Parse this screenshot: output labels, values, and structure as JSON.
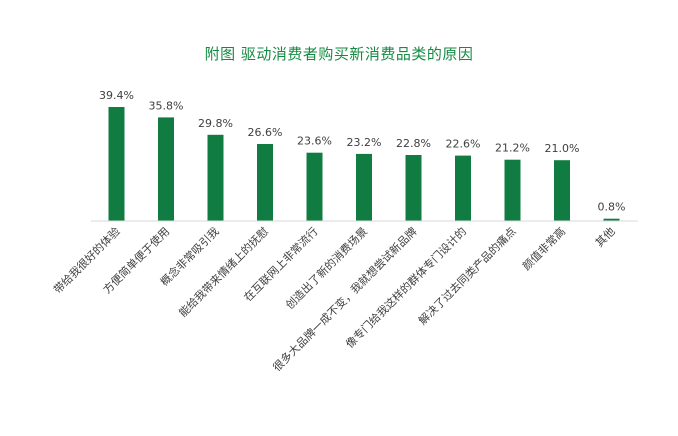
{
  "colors": {
    "bar": "#107c41",
    "title": "#168a43",
    "axis": "#d9d9d9",
    "text": "#404040"
  },
  "chart_data": {
    "type": "bar",
    "title": "附图  驱动消费者购买新消费品类的原因",
    "xlabel": "",
    "ylabel": "",
    "ylim": [
      0,
      40
    ],
    "grid": false,
    "legend": "none",
    "categories": [
      "带给我很好的体验",
      "方便简单便于使用",
      "概念非常吸引我",
      "能给我带来情绪上的抚慰",
      "在互联网上非常流行",
      "创造出了新的消费场景",
      "很多大品牌一成不变，我就想尝试新品牌",
      "像专门给我这样的群体专门设计的",
      "解决了过去同类产品的痛点",
      "颜值非常高",
      "其他"
    ],
    "values": [
      39.4,
      35.8,
      29.8,
      26.6,
      23.6,
      23.2,
      22.8,
      22.6,
      21.2,
      21.0,
      0.8
    ],
    "value_labels": [
      "39.4%",
      "35.8%",
      "29.8%",
      "26.6%",
      "23.6%",
      "23.2%",
      "22.8%",
      "22.6%",
      "21.2%",
      "21.0%",
      "0.8%"
    ]
  }
}
